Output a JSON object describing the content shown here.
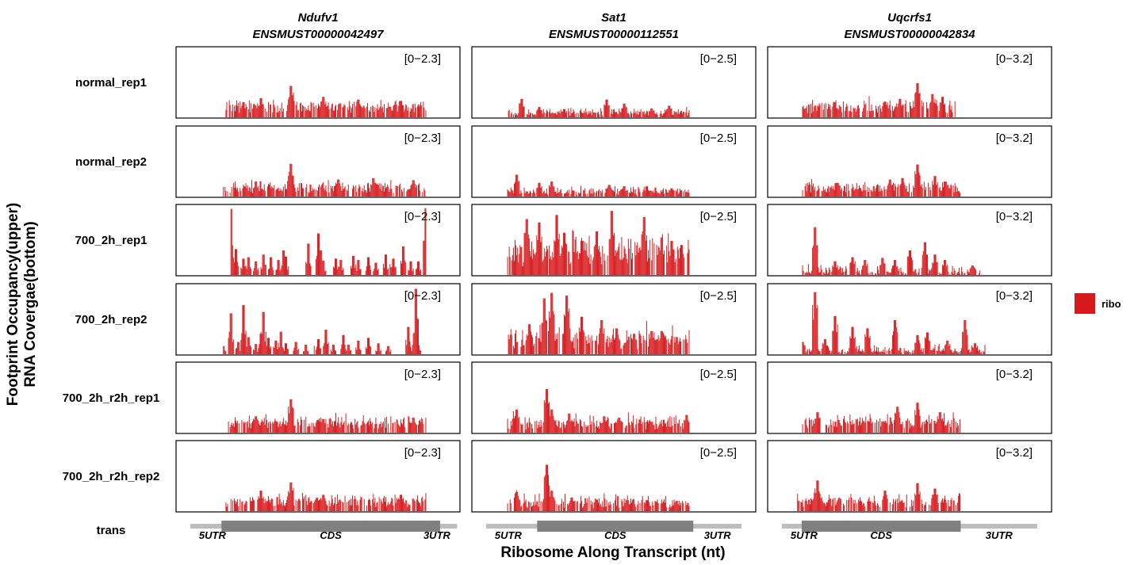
{
  "chart_data": {
    "type": "bar",
    "y_axis_title_lines": [
      "Footprint Occupancy(upper)",
      "RNA Covergae(bottom)"
    ],
    "x_axis_title": "Ribosome Along Transcript (nt)",
    "track_row_label": "trans",
    "legend": {
      "placement": "right",
      "entries": [
        {
          "name": "ribo",
          "color": "#d7191c"
        }
      ]
    },
    "colors": {
      "bar": "#d7191c",
      "utr": "#bdbdbd",
      "cds": "#808080",
      "panel_border": "#000000"
    },
    "samples": [
      "normal_rep1",
      "normal_rep2",
      "700_2h_rep1",
      "700_2h_rep2",
      "700_2h_r2h_rep1",
      "700_2h_r2h_rep2"
    ],
    "genes": [
      {
        "gene": "Ndufv1",
        "transcript": "ENSMUST00000042497",
        "range_label": "[0−2.3]",
        "ymax": 2.3,
        "utr_labels": [
          "5UTR",
          "CDS",
          "3UTR"
        ],
        "structure": [
          0.05,
          0.16,
          0.93,
          0.99
        ]
      },
      {
        "gene": "Sat1",
        "transcript": "ENSMUST00000112551",
        "range_label": "[0−2.5]",
        "ymax": 2.5,
        "utr_labels": [
          "5UTR",
          "CDS",
          "3UTR"
        ],
        "structure": [
          0.05,
          0.23,
          0.78,
          0.95
        ]
      },
      {
        "gene": "Uqcrfs1",
        "transcript": "ENSMUST00000042834",
        "range_label": "[0−3.2]",
        "ymax": 3.2,
        "utr_labels": [
          "5UTR",
          "CDS",
          "3UTR"
        ],
        "structure": [
          0.05,
          0.12,
          0.68,
          0.95
        ]
      }
    ],
    "series": [
      {
        "gene": "Ndufv1",
        "sample": "normal_rep1",
        "start": 0.13,
        "end": 0.93,
        "base": 0.14,
        "noise": 0.12,
        "peaks": [
          [
            0.39,
            0.46
          ],
          [
            0.27,
            0.28
          ],
          [
            0.52,
            0.3
          ],
          [
            0.66,
            0.26
          ],
          [
            0.83,
            0.24
          ],
          [
            0.2,
            0.22
          ]
        ]
      },
      {
        "gene": "Ndufv1",
        "sample": "normal_rep2",
        "start": 0.12,
        "end": 0.93,
        "base": 0.12,
        "noise": 0.12,
        "peaks": [
          [
            0.39,
            0.48
          ],
          [
            0.58,
            0.25
          ],
          [
            0.72,
            0.27
          ],
          [
            0.25,
            0.22
          ],
          [
            0.88,
            0.24
          ]
        ]
      },
      {
        "gene": "Ndufv1",
        "sample": "700_2h_rep1",
        "start": 0.15,
        "end": 0.93,
        "base": 0.0,
        "noise": 0.0,
        "peaks": [
          [
            0.15,
            0.97
          ],
          [
            0.17,
            0.38
          ],
          [
            0.2,
            0.24
          ],
          [
            0.22,
            0.26
          ],
          [
            0.25,
            0.2
          ],
          [
            0.28,
            0.3
          ],
          [
            0.31,
            0.26
          ],
          [
            0.34,
            0.22
          ],
          [
            0.36,
            0.36
          ],
          [
            0.37,
            0.27
          ],
          [
            0.46,
            0.46
          ],
          [
            0.5,
            0.61
          ],
          [
            0.51,
            0.36
          ],
          [
            0.52,
            0.21
          ],
          [
            0.57,
            0.24
          ],
          [
            0.59,
            0.22
          ],
          [
            0.64,
            0.28
          ],
          [
            0.66,
            0.22
          ],
          [
            0.7,
            0.26
          ],
          [
            0.73,
            0.18
          ],
          [
            0.77,
            0.3
          ],
          [
            0.8,
            0.24
          ],
          [
            0.84,
            0.42
          ],
          [
            0.87,
            0.2
          ],
          [
            0.9,
            0.2
          ],
          [
            0.93,
            0.98
          ]
        ]
      },
      {
        "gene": "Ndufv1",
        "sample": "700_2h_rep2",
        "start": 0.12,
        "end": 0.93,
        "base": 0.0,
        "noise": 0.0,
        "peaks": [
          [
            0.12,
            0.12
          ],
          [
            0.15,
            0.6
          ],
          [
            0.18,
            0.18
          ],
          [
            0.2,
            0.72
          ],
          [
            0.22,
            0.25
          ],
          [
            0.25,
            0.15
          ],
          [
            0.27,
            0.3
          ],
          [
            0.28,
            0.62
          ],
          [
            0.3,
            0.24
          ],
          [
            0.33,
            0.2
          ],
          [
            0.35,
            0.33
          ],
          [
            0.37,
            0.16
          ],
          [
            0.41,
            0.18
          ],
          [
            0.45,
            0.14
          ],
          [
            0.5,
            0.22
          ],
          [
            0.53,
            0.36
          ],
          [
            0.56,
            0.14
          ],
          [
            0.6,
            0.28
          ],
          [
            0.62,
            0.14
          ],
          [
            0.66,
            0.2
          ],
          [
            0.7,
            0.24
          ],
          [
            0.74,
            0.16
          ],
          [
            0.78,
            0.12
          ],
          [
            0.86,
            0.4
          ],
          [
            0.88,
            0.14
          ],
          [
            0.9,
            0.13
          ],
          [
            0.89,
            0.96
          ]
        ]
      },
      {
        "gene": "Ndufv1",
        "sample": "700_2h_r2h_rep1",
        "start": 0.14,
        "end": 0.93,
        "base": 0.13,
        "noise": 0.12,
        "peaks": [
          [
            0.39,
            0.49
          ],
          [
            0.05,
            0.05
          ],
          [
            0.25,
            0.24
          ],
          [
            0.52,
            0.2
          ],
          [
            0.88,
            0.22
          ],
          [
            0.12,
            0.11
          ]
        ]
      },
      {
        "gene": "Ndufv1",
        "sample": "700_2h_r2h_rep2",
        "start": 0.13,
        "end": 0.93,
        "base": 0.13,
        "noise": 0.12,
        "peaks": [
          [
            0.39,
            0.42
          ],
          [
            0.08,
            0.05
          ],
          [
            0.27,
            0.3
          ],
          [
            0.52,
            0.24
          ],
          [
            0.83,
            0.24
          ],
          [
            0.12,
            0.1
          ]
        ]
      },
      {
        "gene": "Sat1",
        "sample": "normal_rep1",
        "start": 0.07,
        "end": 0.8,
        "base": 0.05,
        "noise": 0.1,
        "peaks": [
          [
            0.13,
            0.27
          ],
          [
            0.2,
            0.15
          ],
          [
            0.3,
            0.12
          ],
          [
            0.47,
            0.26
          ],
          [
            0.54,
            0.2
          ],
          [
            0.65,
            0.13
          ],
          [
            0.72,
            0.17
          ]
        ]
      },
      {
        "gene": "Sat1",
        "sample": "normal_rep2",
        "start": 0.07,
        "end": 0.8,
        "base": 0.06,
        "noise": 0.1,
        "peaks": [
          [
            0.11,
            0.32
          ],
          [
            0.2,
            0.2
          ],
          [
            0.25,
            0.22
          ],
          [
            0.48,
            0.17
          ],
          [
            0.54,
            0.15
          ],
          [
            0.63,
            0.15
          ],
          [
            0.73,
            0.12
          ]
        ]
      },
      {
        "gene": "Sat1",
        "sample": "700_2h_rep1",
        "start": 0.07,
        "end": 0.8,
        "base": 0.28,
        "noise": 0.36,
        "peaks": [
          [
            0.15,
            0.82
          ],
          [
            0.2,
            0.77
          ],
          [
            0.27,
            0.88
          ],
          [
            0.3,
            0.62
          ],
          [
            0.37,
            0.5
          ],
          [
            0.43,
            0.64
          ],
          [
            0.49,
            0.94
          ],
          [
            0.62,
            0.85
          ],
          [
            0.69,
            0.55
          ],
          [
            0.73,
            0.5
          ],
          [
            0.77,
            0.44
          ]
        ]
      },
      {
        "gene": "Sat1",
        "sample": "700_2h_rep2",
        "start": 0.07,
        "end": 0.8,
        "base": 0.17,
        "noise": 0.28,
        "peaks": [
          [
            0.22,
            0.82
          ],
          [
            0.25,
            0.9
          ],
          [
            0.31,
            0.86
          ],
          [
            0.16,
            0.44
          ],
          [
            0.37,
            0.55
          ],
          [
            0.45,
            0.5
          ],
          [
            0.51,
            0.38
          ],
          [
            0.58,
            0.3
          ],
          [
            0.65,
            0.34
          ],
          [
            0.69,
            0.34
          ],
          [
            0.75,
            0.25
          ]
        ]
      },
      {
        "gene": "Sat1",
        "sample": "700_2h_r2h_rep1",
        "start": 0.07,
        "end": 0.8,
        "base": 0.1,
        "noise": 0.22,
        "peaks": [
          [
            0.23,
            0.64
          ],
          [
            0.25,
            0.34
          ],
          [
            0.32,
            0.28
          ],
          [
            0.11,
            0.34
          ],
          [
            0.46,
            0.24
          ],
          [
            0.52,
            0.22
          ],
          [
            0.65,
            0.16
          ],
          [
            0.79,
            0.26
          ]
        ]
      },
      {
        "gene": "Sat1",
        "sample": "700_2h_r2h_rep2",
        "start": 0.07,
        "end": 0.8,
        "base": 0.1,
        "noise": 0.2,
        "peaks": [
          [
            0.23,
            0.68
          ],
          [
            0.25,
            0.3
          ],
          [
            0.11,
            0.28
          ],
          [
            0.33,
            0.2
          ],
          [
            0.43,
            0.17
          ],
          [
            0.55,
            0.16
          ],
          [
            0.63,
            0.16
          ],
          [
            0.75,
            0.15
          ],
          [
            0.82,
            0.08
          ]
        ]
      },
      {
        "gene": "Uqcrfs1",
        "sample": "normal_rep1",
        "start": 0.07,
        "end": 0.68,
        "base": 0.13,
        "noise": 0.16,
        "peaks": [
          [
            0.53,
            0.5
          ],
          [
            0.2,
            0.22
          ],
          [
            0.4,
            0.23
          ],
          [
            0.46,
            0.27
          ],
          [
            0.59,
            0.34
          ],
          [
            0.63,
            0.3
          ]
        ]
      },
      {
        "gene": "Uqcrfs1",
        "sample": "normal_rep2",
        "start": 0.07,
        "end": 0.7,
        "base": 0.11,
        "noise": 0.14,
        "peaks": [
          [
            0.53,
            0.47
          ],
          [
            0.21,
            0.2
          ],
          [
            0.42,
            0.25
          ],
          [
            0.47,
            0.27
          ],
          [
            0.6,
            0.3
          ],
          [
            0.64,
            0.22
          ],
          [
            0.75,
            0.04
          ]
        ]
      },
      {
        "gene": "Uqcrfs1",
        "sample": "700_2h_rep1",
        "start": 0.07,
        "end": 0.78,
        "base": 0.02,
        "noise": 0.16,
        "peaks": [
          [
            0.12,
            0.7
          ],
          [
            0.2,
            0.2
          ],
          [
            0.27,
            0.26
          ],
          [
            0.32,
            0.22
          ],
          [
            0.39,
            0.25
          ],
          [
            0.44,
            0.22
          ],
          [
            0.5,
            0.36
          ],
          [
            0.56,
            0.48
          ],
          [
            0.6,
            0.3
          ],
          [
            0.64,
            0.22
          ],
          [
            0.75,
            0.14
          ],
          [
            0.85,
            0.3
          ]
        ]
      },
      {
        "gene": "Uqcrfs1",
        "sample": "700_2h_rep2",
        "start": 0.07,
        "end": 0.8,
        "base": 0.03,
        "noise": 0.14,
        "peaks": [
          [
            0.12,
            0.91
          ],
          [
            0.07,
            0.18
          ],
          [
            0.16,
            0.22
          ],
          [
            0.2,
            0.56
          ],
          [
            0.27,
            0.4
          ],
          [
            0.33,
            0.38
          ],
          [
            0.44,
            0.5
          ],
          [
            0.53,
            0.28
          ],
          [
            0.57,
            0.32
          ],
          [
            0.65,
            0.2
          ],
          [
            0.72,
            0.5
          ],
          [
            0.76,
            0.16
          ]
        ]
      },
      {
        "gene": "Uqcrfs1",
        "sample": "700_2h_r2h_rep1",
        "start": 0.07,
        "end": 0.7,
        "base": 0.12,
        "noise": 0.16,
        "peaks": [
          [
            0.13,
            0.3
          ],
          [
            0.45,
            0.38
          ],
          [
            0.53,
            0.44
          ],
          [
            0.62,
            0.3
          ],
          [
            0.75,
            0.05
          ],
          [
            0.85,
            0.05
          ]
        ]
      },
      {
        "gene": "Uqcrfs1",
        "sample": "700_2h_r2h_rep2",
        "start": 0.05,
        "end": 0.7,
        "base": 0.12,
        "noise": 0.16,
        "peaks": [
          [
            0.13,
            0.45
          ],
          [
            0.4,
            0.3
          ],
          [
            0.53,
            0.41
          ],
          [
            0.6,
            0.33
          ],
          [
            0.75,
            0.06
          ],
          [
            0.86,
            0.06
          ]
        ]
      }
    ]
  }
}
